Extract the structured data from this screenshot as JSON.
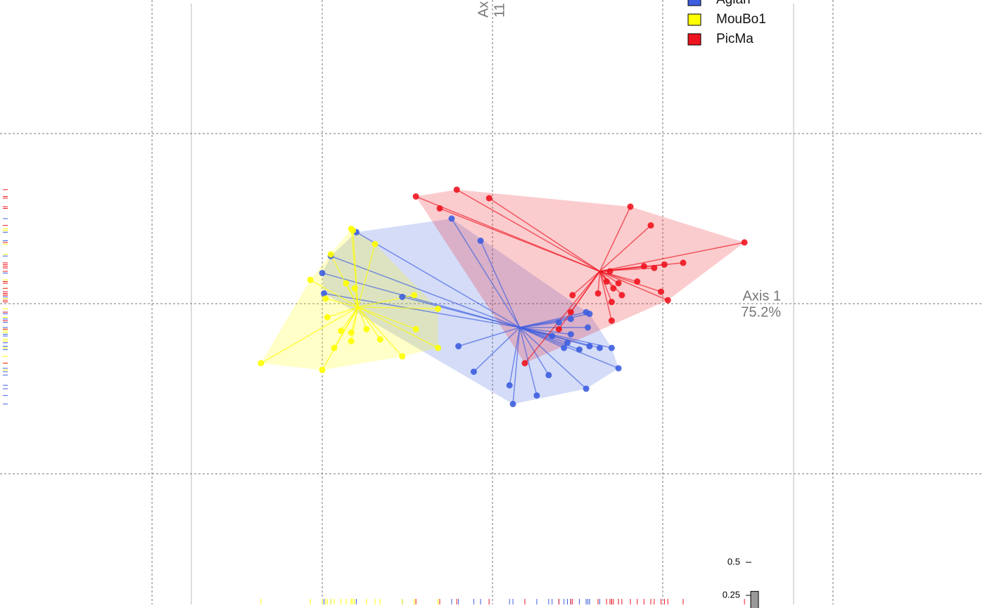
{
  "chart_data": {
    "type": "scatter",
    "xlim": [
      -2.893,
      2.893
    ],
    "ylim": [
      -1.789,
      1.785
    ],
    "xticks": [
      -2,
      -1,
      0,
      1,
      2
    ],
    "yticks": [
      -1,
      0,
      1
    ],
    "grid": true,
    "x_label": "Axis 1",
    "x_label_2": "75.2%",
    "y_label": "Ax",
    "y_label_2": "11",
    "series": [
      {
        "name": "Aglan",
        "color": "#3d5ee0",
        "center": [
          0.16,
          -0.14
        ],
        "x": [
          -0.8,
          -0.95,
          -1.0,
          -0.99,
          -0.53,
          -0.24,
          -0.07,
          -0.2,
          -0.11,
          0.1,
          0.12,
          0.26,
          0.33,
          0.55,
          0.74,
          0.7,
          0.63,
          0.57,
          0.51,
          0.42,
          0.35,
          0.39,
          0.46,
          0.56,
          0.55,
          0.57,
          0.46,
          0.44
        ],
        "y": [
          0.42,
          0.28,
          0.18,
          0.06,
          0.04,
          0.5,
          0.37,
          -0.25,
          -0.4,
          -0.48,
          -0.59,
          -0.54,
          -0.42,
          -0.5,
          -0.38,
          -0.26,
          -0.26,
          -0.25,
          -0.27,
          -0.26,
          -0.19,
          -0.11,
          -0.18,
          -0.14,
          -0.05,
          -0.06,
          -0.09,
          -0.23
        ]
      },
      {
        "name": "MouBo1",
        "color": "#ffff00",
        "center": [
          -0.79,
          -0.02
        ],
        "x": [
          -1.36,
          -1.0,
          -1.07,
          -0.98,
          -0.97,
          -0.89,
          -0.93,
          -0.83,
          -0.83,
          -0.74,
          -0.66,
          -0.53,
          -0.45,
          -0.32,
          -0.32,
          -0.46,
          -0.83,
          -0.82,
          -0.95,
          -0.86,
          -0.81,
          -0.69
        ],
        "y": [
          -0.35,
          -0.39,
          0.14,
          0.03,
          -0.08,
          -0.16,
          -0.26,
          -0.22,
          -0.17,
          -0.15,
          -0.21,
          -0.31,
          -0.15,
          -0.03,
          -0.26,
          0.05,
          0.44,
          0.43,
          0.29,
          0.12,
          0.09,
          0.35
        ]
      },
      {
        "name": "PicMa",
        "color": "#ee1520",
        "center": [
          0.63,
          0.19
        ],
        "x": [
          -0.45,
          -0.21,
          -0.31,
          -0.02,
          0.81,
          0.93,
          1.48,
          1.12,
          1.01,
          0.95,
          0.89,
          0.85,
          0.74,
          0.76,
          0.71,
          0.67,
          0.7,
          0.62,
          0.47,
          0.46,
          0.39,
          0.19,
          0.99,
          1.03,
          0.69,
          0.7
        ],
        "y": [
          0.63,
          0.67,
          0.56,
          0.62,
          0.57,
          0.46,
          0.36,
          0.24,
          0.23,
          0.21,
          0.22,
          0.13,
          0.12,
          0.05,
          0.09,
          0.13,
          0.01,
          0.06,
          0.05,
          -0.05,
          -0.15,
          -0.35,
          0.07,
          0.02,
          0.19,
          -0.1
        ]
      }
    ],
    "inset": {
      "type": "bar",
      "values": [
        0.28
      ],
      "yticks": [
        0.25,
        0.5
      ]
    }
  }
}
